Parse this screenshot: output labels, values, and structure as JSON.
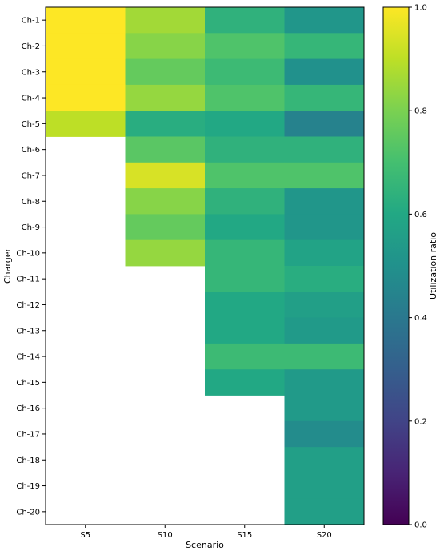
{
  "chart_data": {
    "type": "heatmap",
    "xlabel": "Scenario",
    "ylabel": "Charger",
    "categories_x": [
      "S5",
      "S10",
      "S15",
      "S20"
    ],
    "categories_y": [
      "Ch-1",
      "Ch-2",
      "Ch-3",
      "Ch-4",
      "Ch-5",
      "Ch-6",
      "Ch-7",
      "Ch-8",
      "Ch-9",
      "Ch-10",
      "Ch-11",
      "Ch-12",
      "Ch-13",
      "Ch-14",
      "Ch-15",
      "Ch-16",
      "Ch-17",
      "Ch-18",
      "Ch-19",
      "Ch-20"
    ],
    "values": [
      [
        1.0,
        0.86,
        0.64,
        0.52
      ],
      [
        1.0,
        0.82,
        0.72,
        0.66
      ],
      [
        1.0,
        0.76,
        0.68,
        0.5
      ],
      [
        1.0,
        0.84,
        0.72,
        0.66
      ],
      [
        0.9,
        0.62,
        0.6,
        0.44
      ],
      [
        null,
        0.74,
        0.64,
        0.64
      ],
      [
        null,
        0.94,
        0.72,
        0.72
      ],
      [
        null,
        0.82,
        0.64,
        0.52
      ],
      [
        null,
        0.76,
        0.6,
        0.52
      ],
      [
        null,
        0.84,
        0.66,
        0.58
      ],
      [
        null,
        null,
        0.66,
        0.62
      ],
      [
        null,
        null,
        0.6,
        0.56
      ],
      [
        null,
        null,
        0.6,
        0.54
      ],
      [
        null,
        null,
        0.68,
        0.68
      ],
      [
        null,
        null,
        0.6,
        0.54
      ],
      [
        null,
        null,
        null,
        0.54
      ],
      [
        null,
        null,
        null,
        0.48
      ],
      [
        null,
        null,
        null,
        0.56
      ],
      [
        null,
        null,
        null,
        0.56
      ],
      [
        null,
        null,
        null,
        0.56
      ]
    ],
    "colorbar": {
      "label": "Utilization ratio",
      "min": 0.0,
      "max": 1.0,
      "ticks": [
        "0.0",
        "0.2",
        "0.4",
        "0.6",
        "0.8",
        "1.0"
      ],
      "colormap": "viridis"
    },
    "grid": false
  }
}
